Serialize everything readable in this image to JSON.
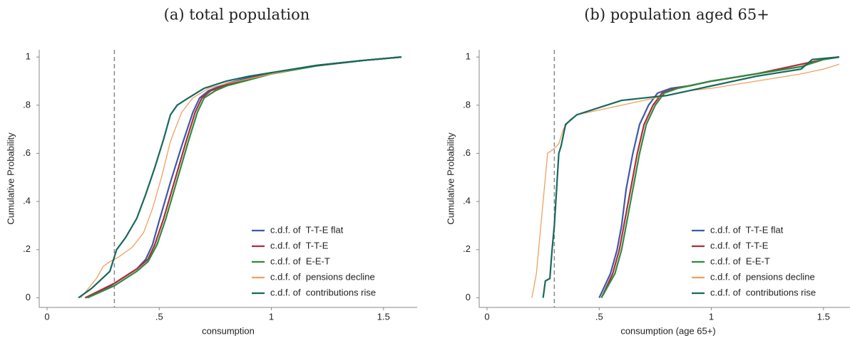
{
  "chart_data": [
    {
      "type": "line",
      "title": "(a) total population",
      "xlabel": "consumption",
      "ylabel": "Cumulative Probability",
      "xlim": [
        -0.035,
        1.65
      ],
      "ylim": [
        -0.04,
        1.03
      ],
      "xticks": [
        0,
        {
          "value": 0.5,
          "label": ".5"
        },
        1,
        1.5
      ],
      "yticks": [
        0,
        {
          "value": 0.2,
          "label": ".2"
        },
        {
          "value": 0.4,
          "label": ".4"
        },
        {
          "value": 0.6,
          "label": ".6"
        },
        {
          "value": 0.8,
          "label": ".8"
        },
        1
      ],
      "reference_line_x": 0.3,
      "legend": "lower right",
      "series": [
        {
          "name": "c.d.f. of  T-T-E flat",
          "color": "#3b5ba8",
          "x": [
            0.17,
            0.25,
            0.3,
            0.35,
            0.4,
            0.44,
            0.47,
            0.5,
            0.55,
            0.6,
            0.65,
            0.68,
            0.72,
            0.8,
            0.9,
            1.0,
            1.2,
            1.4,
            1.58
          ],
          "values": [
            0,
            0.03,
            0.06,
            0.09,
            0.12,
            0.16,
            0.22,
            0.32,
            0.48,
            0.63,
            0.77,
            0.83,
            0.86,
            0.89,
            0.915,
            0.935,
            0.965,
            0.985,
            1
          ]
        },
        {
          "name": "c.d.f. of  T-T-E",
          "color": "#b22a3c",
          "x": [
            0.17,
            0.3,
            0.4,
            0.45,
            0.48,
            0.52,
            0.57,
            0.62,
            0.66,
            0.69,
            0.73,
            0.8,
            0.9,
            1.0,
            1.2,
            1.4,
            1.58
          ],
          "values": [
            0,
            0.06,
            0.12,
            0.16,
            0.22,
            0.33,
            0.49,
            0.65,
            0.77,
            0.83,
            0.86,
            0.885,
            0.91,
            0.933,
            0.965,
            0.985,
            1
          ]
        },
        {
          "name": "c.d.f. of  E-E-T",
          "color": "#2e8b3e",
          "x": [
            0.18,
            0.3,
            0.4,
            0.45,
            0.49,
            0.53,
            0.58,
            0.63,
            0.67,
            0.7,
            0.75,
            0.8,
            0.9,
            1.0,
            1.2,
            1.4,
            1.58
          ],
          "values": [
            0,
            0.05,
            0.11,
            0.15,
            0.22,
            0.33,
            0.49,
            0.65,
            0.77,
            0.83,
            0.86,
            0.88,
            0.905,
            0.93,
            0.963,
            0.985,
            1
          ]
        },
        {
          "name": "c.d.f. of  pensions decline",
          "color": "#f0a060",
          "x": [
            0.15,
            0.22,
            0.25,
            0.28,
            0.32,
            0.38,
            0.43,
            0.47,
            0.51,
            0.55,
            0.6,
            0.65,
            0.72,
            0.8,
            0.9,
            1.0,
            1.2,
            1.4,
            1.58
          ],
          "values": [
            0,
            0.08,
            0.13,
            0.15,
            0.17,
            0.21,
            0.27,
            0.37,
            0.5,
            0.65,
            0.77,
            0.83,
            0.87,
            0.89,
            0.91,
            0.93,
            0.965,
            0.985,
            1
          ]
        },
        {
          "name": "c.d.f. of  contributions rise",
          "color": "#17695c",
          "x": [
            0.14,
            0.2,
            0.28,
            0.31,
            0.35,
            0.4,
            0.44,
            0.48,
            0.52,
            0.55,
            0.58,
            0.63,
            0.7,
            0.8,
            0.9,
            1.0,
            1.2,
            1.4,
            1.58
          ],
          "values": [
            0,
            0.04,
            0.11,
            0.2,
            0.25,
            0.33,
            0.43,
            0.54,
            0.66,
            0.76,
            0.8,
            0.83,
            0.87,
            0.9,
            0.92,
            0.935,
            0.965,
            0.985,
            1
          ]
        }
      ]
    },
    {
      "type": "line",
      "title": "(b) population aged 65+",
      "xlabel": "consumption (age 65+)",
      "ylabel": "Cumulative Probability",
      "xlim": [
        -0.035,
        1.65
      ],
      "ylim": [
        -0.04,
        1.03
      ],
      "xticks": [
        0,
        {
          "value": 0.5,
          "label": ".5"
        },
        1,
        1.5
      ],
      "yticks": [
        0,
        {
          "value": 0.2,
          "label": ".2"
        },
        {
          "value": 0.4,
          "label": ".4"
        },
        {
          "value": 0.6,
          "label": ".6"
        },
        {
          "value": 0.8,
          "label": ".8"
        },
        1
      ],
      "reference_line_x": 0.3,
      "legend": "lower right",
      "series": [
        {
          "name": "c.d.f. of  T-T-E flat",
          "color": "#3b5ba8",
          "x": [
            0.5,
            0.55,
            0.58,
            0.6,
            0.62,
            0.65,
            0.68,
            0.72,
            0.76,
            0.82,
            0.9,
            1.0,
            1.2,
            1.4,
            1.5,
            1.57
          ],
          "values": [
            0,
            0.1,
            0.2,
            0.3,
            0.45,
            0.6,
            0.72,
            0.8,
            0.85,
            0.87,
            0.88,
            0.9,
            0.93,
            0.96,
            0.99,
            1
          ]
        },
        {
          "name": "c.d.f. of  T-T-E",
          "color": "#b22a3c",
          "x": [
            0.51,
            0.56,
            0.59,
            0.61,
            0.64,
            0.67,
            0.7,
            0.74,
            0.78,
            0.84,
            0.9,
            1.0,
            1.2,
            1.4,
            1.5,
            1.57
          ],
          "values": [
            0,
            0.1,
            0.2,
            0.3,
            0.45,
            0.6,
            0.72,
            0.8,
            0.85,
            0.87,
            0.88,
            0.9,
            0.93,
            0.97,
            0.99,
            1
          ]
        },
        {
          "name": "c.d.f. of  E-E-T",
          "color": "#2e8b3e",
          "x": [
            0.51,
            0.57,
            0.6,
            0.62,
            0.65,
            0.68,
            0.71,
            0.75,
            0.79,
            0.85,
            0.9,
            1.0,
            1.2,
            1.4,
            1.5,
            1.57
          ],
          "values": [
            0,
            0.1,
            0.2,
            0.3,
            0.45,
            0.6,
            0.72,
            0.8,
            0.85,
            0.87,
            0.88,
            0.9,
            0.93,
            0.96,
            0.99,
            1
          ]
        },
        {
          "name": "c.d.f. of  pensions decline",
          "color": "#f0a060",
          "x": [
            0.2,
            0.21,
            0.22,
            0.23,
            0.24,
            0.25,
            0.26,
            0.27,
            0.3,
            0.32,
            0.34,
            0.37,
            0.4,
            0.5,
            0.6,
            0.75,
            0.9,
            1.0,
            1.2,
            1.4,
            1.5,
            1.57
          ],
          "values": [
            0,
            0.05,
            0.1,
            0.2,
            0.3,
            0.4,
            0.5,
            0.6,
            0.62,
            0.64,
            0.7,
            0.74,
            0.76,
            0.78,
            0.8,
            0.83,
            0.86,
            0.87,
            0.9,
            0.93,
            0.95,
            0.97
          ]
        },
        {
          "name": "c.d.f. of  contributions rise",
          "color": "#17695c",
          "x": [
            0.25,
            0.26,
            0.28,
            0.29,
            0.3,
            0.31,
            0.32,
            0.33,
            0.35,
            0.4,
            0.5,
            0.6,
            0.8,
            0.9,
            1.0,
            1.2,
            1.4,
            1.45,
            1.57
          ],
          "values": [
            0,
            0.07,
            0.08,
            0.2,
            0.3,
            0.45,
            0.6,
            0.63,
            0.72,
            0.76,
            0.79,
            0.82,
            0.84,
            0.86,
            0.88,
            0.92,
            0.95,
            0.99,
            1
          ]
        }
      ]
    }
  ]
}
